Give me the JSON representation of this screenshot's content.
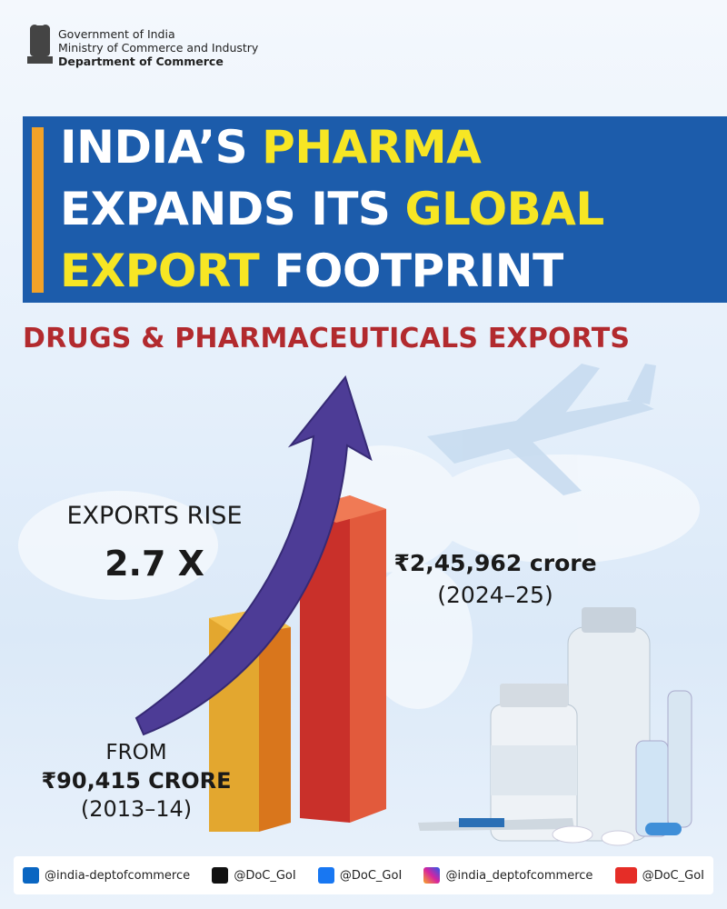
{
  "header": {
    "lines": [
      "Government of India",
      "Ministry of Commerce and Industry",
      "Department of Commerce"
    ]
  },
  "title": {
    "lines": [
      [
        {
          "text": "INDIA’S",
          "highlight": false
        },
        {
          "text": "PHARMA",
          "highlight": true
        }
      ],
      [
        {
          "text": "EXPANDS ITS",
          "highlight": false
        },
        {
          "text": "GLOBAL",
          "highlight": true
        }
      ],
      [
        {
          "text": "EXPORT",
          "highlight": true
        },
        {
          "text": "FOOTPRINT",
          "highlight": false
        }
      ]
    ]
  },
  "subtitle": "DRUGS & PHARMACEUTICALS EXPORTS",
  "rise": {
    "label": "EXPORTS RISE",
    "value": "2.7 X"
  },
  "latest": {
    "value": "₹2,45,962 crore",
    "period": "(2024–25)"
  },
  "base": {
    "label": "FROM",
    "value": "₹90,415 CRORE",
    "period": "(2013–14)"
  },
  "footer": {
    "handles": [
      "@india-deptofcommerce",
      "@DoC_GoI",
      "@DoC_GoI",
      "@india_deptofcommerce",
      "@DoC_GoI"
    ]
  }
}
